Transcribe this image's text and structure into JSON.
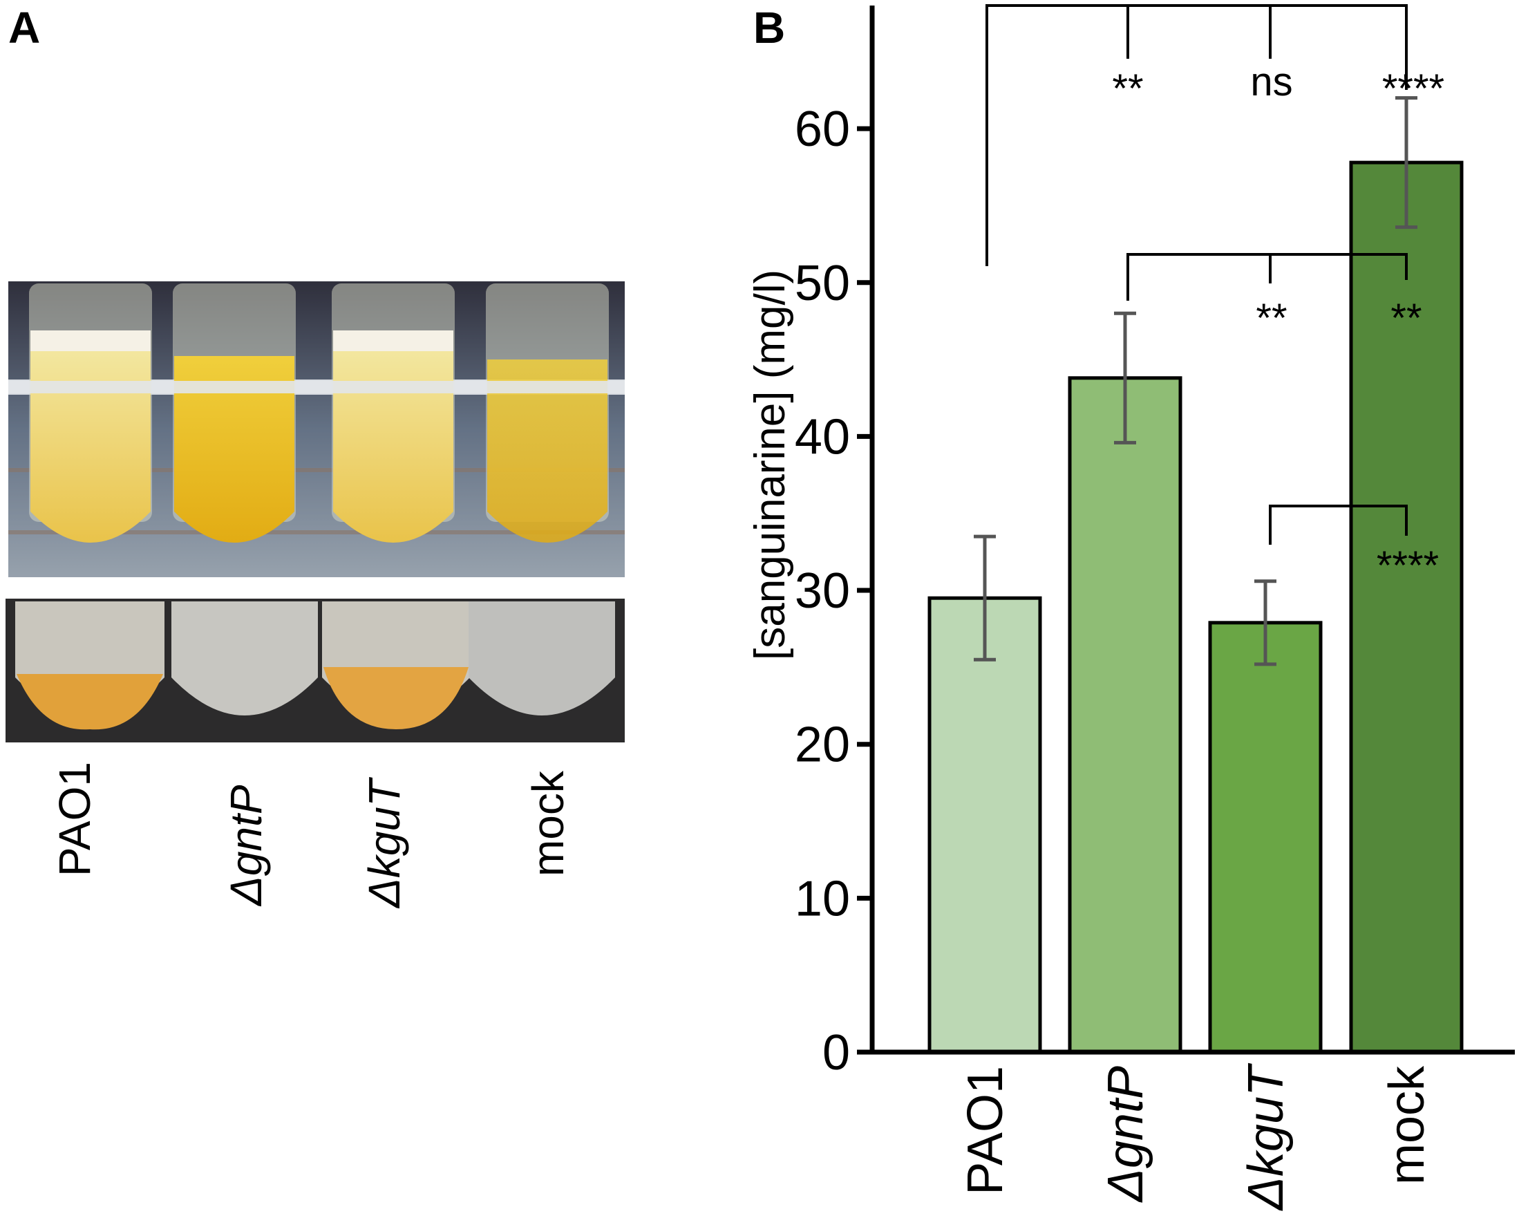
{
  "panels": {
    "a": {
      "letter": "A",
      "tube_labels": [
        "PAO1",
        "ΔgntP",
        "ΔkguT",
        "mock"
      ]
    },
    "b": {
      "letter": "B"
    }
  },
  "chart_data": {
    "type": "bar",
    "title": "",
    "xlabel": "",
    "ylabel": "[sanguinarine] (mg/l)",
    "ylim": [
      0,
      68
    ],
    "yticks": [
      0,
      10,
      20,
      30,
      40,
      50,
      60
    ],
    "categories": [
      "PAO1",
      "ΔgntP",
      "ΔkguT",
      "mock"
    ],
    "values": [
      29.5,
      43.8,
      27.9,
      57.8
    ],
    "errors": [
      4.0,
      4.2,
      2.7,
      4.2
    ],
    "colors": [
      "#bcd8b4",
      "#8fbd75",
      "#6aa645",
      "#54883a"
    ],
    "grid": false,
    "significance": [
      {
        "from": "PAO1",
        "to": "ΔgntP",
        "label": "**"
      },
      {
        "from": "PAO1",
        "to": "ΔkguT",
        "label": "ns"
      },
      {
        "from": "PAO1",
        "to": "mock",
        "label": "****"
      },
      {
        "from": "ΔgntP",
        "to": "ΔkguT",
        "label": "**"
      },
      {
        "from": "ΔgntP",
        "to": "mock",
        "label": "**"
      },
      {
        "from": "ΔkguT",
        "to": "mock",
        "label": "****"
      }
    ]
  }
}
